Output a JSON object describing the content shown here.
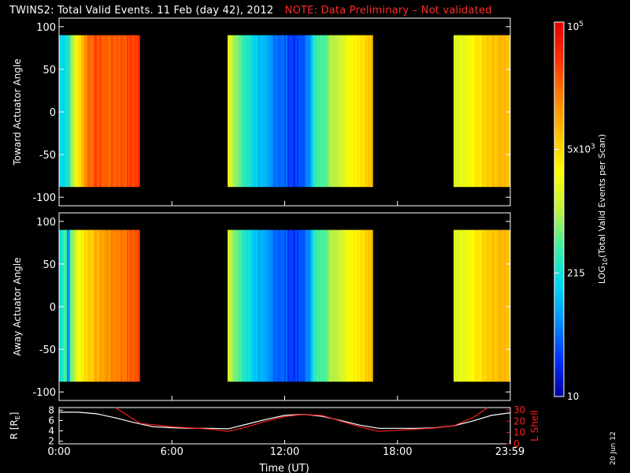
{
  "title": {
    "main": "TWINS2: Total Valid Events. 11 Feb (day  42), 2012",
    "note": "NOTE: Data Preliminary – Not validated",
    "note_color": "#ff2a2a"
  },
  "date_stamp": "20 Jun 12",
  "chart_data": [
    {
      "type": "heatmap",
      "panel": "top",
      "ylabel": "Toward Actuator Angle",
      "ylim": [
        -110,
        110
      ],
      "yticks": [
        "100",
        "50",
        "0",
        "-50",
        "-100"
      ],
      "ytick_values": [
        100,
        50,
        0,
        -50,
        -100
      ],
      "x_range_hours": [
        0,
        24
      ],
      "data_y_extent": [
        -88,
        90
      ],
      "segments_hours": [
        [
          0,
          4.3
        ],
        [
          9.0,
          16.7
        ],
        [
          21.0,
          24
        ]
      ],
      "color_profile": [
        {
          "h": 0.0,
          "v": 0.3
        },
        {
          "h": 0.45,
          "v": 0.35
        },
        {
          "h": 0.8,
          "v": 0.55
        },
        {
          "h": 1.1,
          "v": 0.68
        },
        {
          "h": 1.5,
          "v": 0.83
        },
        {
          "h": 2.0,
          "v": 0.86
        },
        {
          "h": 2.5,
          "v": 0.84
        },
        {
          "h": 3.0,
          "v": 0.85
        },
        {
          "h": 3.6,
          "v": 0.87
        },
        {
          "h": 4.3,
          "v": 0.89
        },
        {
          "h": 9.0,
          "v": 0.58
        },
        {
          "h": 9.6,
          "v": 0.4
        },
        {
          "h": 10.4,
          "v": 0.3
        },
        {
          "h": 11.0,
          "v": 0.22
        },
        {
          "h": 11.8,
          "v": 0.16
        },
        {
          "h": 12.6,
          "v": 0.1
        },
        {
          "h": 13.2,
          "v": 0.18
        },
        {
          "h": 13.5,
          "v": 0.35
        },
        {
          "h": 14.2,
          "v": 0.45
        },
        {
          "h": 15.0,
          "v": 0.55
        },
        {
          "h": 15.7,
          "v": 0.63
        },
        {
          "h": 16.7,
          "v": 0.7
        },
        {
          "h": 21.0,
          "v": 0.55
        },
        {
          "h": 21.8,
          "v": 0.6
        },
        {
          "h": 22.6,
          "v": 0.66
        },
        {
          "h": 23.4,
          "v": 0.7
        },
        {
          "h": 24.0,
          "v": 0.68
        }
      ]
    },
    {
      "type": "heatmap",
      "panel": "middle",
      "ylabel": "Away Actuator Angle",
      "ylim": [
        -110,
        110
      ],
      "yticks": [
        "100",
        "50",
        "0",
        "-50",
        "-100"
      ],
      "ytick_values": [
        100,
        50,
        0,
        -50,
        -100
      ],
      "x_range_hours": [
        0,
        24
      ],
      "data_y_extent": [
        -88,
        90
      ],
      "segments_hours": [
        [
          0,
          4.3
        ],
        [
          9.0,
          16.7
        ],
        [
          21.0,
          24
        ]
      ],
      "color_profile": [
        {
          "h": 0.0,
          "v": 0.3
        },
        {
          "h": 0.3,
          "v": 0.45
        },
        {
          "h": 0.45,
          "v": 0.12
        },
        {
          "h": 0.55,
          "v": 0.4
        },
        {
          "h": 0.9,
          "v": 0.55
        },
        {
          "h": 1.3,
          "v": 0.66
        },
        {
          "h": 1.8,
          "v": 0.7
        },
        {
          "h": 2.4,
          "v": 0.76
        },
        {
          "h": 3.0,
          "v": 0.8
        },
        {
          "h": 3.6,
          "v": 0.83
        },
        {
          "h": 4.3,
          "v": 0.87
        },
        {
          "h": 9.0,
          "v": 0.55
        },
        {
          "h": 9.6,
          "v": 0.38
        },
        {
          "h": 10.4,
          "v": 0.28
        },
        {
          "h": 11.0,
          "v": 0.2
        },
        {
          "h": 11.8,
          "v": 0.15
        },
        {
          "h": 12.6,
          "v": 0.1
        },
        {
          "h": 13.2,
          "v": 0.18
        },
        {
          "h": 13.5,
          "v": 0.35
        },
        {
          "h": 14.2,
          "v": 0.45
        },
        {
          "h": 15.0,
          "v": 0.55
        },
        {
          "h": 15.7,
          "v": 0.63
        },
        {
          "h": 16.7,
          "v": 0.7
        },
        {
          "h": 21.0,
          "v": 0.55
        },
        {
          "h": 21.8,
          "v": 0.6
        },
        {
          "h": 22.6,
          "v": 0.66
        },
        {
          "h": 23.4,
          "v": 0.7
        },
        {
          "h": 24.0,
          "v": 0.68
        }
      ]
    },
    {
      "type": "line",
      "panel": "bottom",
      "ylabel_left": "R [R",
      "ylabel_left_sub": "E",
      "ylabel_left_close": "]",
      "ylabel_right": "L Shell",
      "ylim_left": [
        1.5,
        8.5
      ],
      "ylim_right": [
        0,
        32
      ],
      "yticks_left": [
        "8",
        "6",
        "4",
        "2"
      ],
      "ytick_left_values": [
        8,
        6,
        4,
        2
      ],
      "yticks_right": [
        "30",
        "20",
        "10",
        "0"
      ],
      "ytick_right_values": [
        30,
        20,
        10,
        0
      ],
      "xlabel": "Time (UT)",
      "xticks": [
        "0:00",
        "6:00",
        "12:00",
        "18:00",
        "23:59"
      ],
      "xtick_values": [
        0,
        6,
        12,
        18,
        23.98
      ],
      "series": [
        {
          "axis": "left",
          "color": "#ffffff",
          "x": [
            0,
            1,
            2,
            3,
            4,
            5,
            6,
            7,
            8,
            9,
            10,
            11,
            12,
            13,
            14,
            15,
            16,
            17,
            18,
            19,
            20,
            21,
            22,
            23,
            24
          ],
          "y": [
            7.6,
            7.6,
            7.3,
            6.5,
            5.6,
            4.8,
            4.6,
            4.5,
            4.5,
            4.4,
            5.3,
            6.2,
            7.0,
            7.2,
            6.8,
            6.0,
            5.1,
            4.5,
            4.5,
            4.5,
            4.6,
            5.0,
            5.9,
            7.0,
            7.5
          ]
        },
        {
          "axis": "right",
          "color": "#ff2020",
          "x": [
            3,
            4.3,
            6,
            8,
            9,
            10,
            11,
            12,
            13,
            14,
            15,
            16,
            17,
            18,
            19,
            20,
            21,
            22,
            22.8
          ],
          "y": [
            32,
            18,
            15,
            13,
            11,
            15,
            20,
            24,
            26,
            25,
            20,
            15,
            11,
            12,
            13,
            14,
            16,
            23,
            32
          ]
        }
      ]
    }
  ],
  "colorbar": {
    "label_prefix": "LOG",
    "label_sub": "10",
    "label_suffix": "(Total Valid  Events per Scan)",
    "ticks": [
      {
        "text": "10",
        "sup": "5",
        "frac": 1.0
      },
      {
        "text": "5x10",
        "sup": "3",
        "frac": 0.66
      },
      {
        "text": "215",
        "sup": "",
        "frac": 0.33
      },
      {
        "text": "10",
        "sup": "",
        "frac": 0.0
      }
    ]
  },
  "colors": {
    "frame": "#ffffff",
    "background": "#000000",
    "palette": [
      "#0000a0",
      "#0030ff",
      "#0090ff",
      "#00d8f0",
      "#40f0a0",
      "#c0f040",
      "#ffff00",
      "#ffc000",
      "#ff8000",
      "#ff3000",
      "#e00000"
    ]
  }
}
